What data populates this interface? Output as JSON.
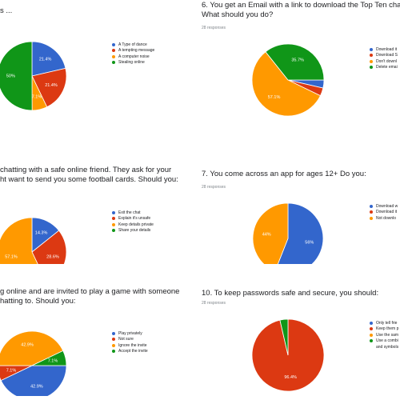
{
  "colors": {
    "blue": "#3366cc",
    "red": "#dc3912",
    "orange": "#ff9900",
    "green": "#109618"
  },
  "chart_data": [
    {
      "type": "pie",
      "title": "s ...",
      "responses": "",
      "legend": [
        "A Type of dance",
        "A tempting message",
        "A computer noise",
        "Stealing online"
      ],
      "values": [
        21.4,
        21.4,
        7.1,
        50
      ],
      "labels": [
        "21.4%",
        "21.4%",
        "7.1%",
        "50%"
      ],
      "legend_position": "right"
    },
    {
      "type": "pie",
      "title": "6. You get an Email with a link to download the Top Ten cha",
      "title2": "What should you do?",
      "responses": "28 responses",
      "legend": [
        "Download it",
        "Download S",
        "Don't downl",
        "Delete emai"
      ],
      "values": [
        3.6,
        3.6,
        57.1,
        35.7
      ],
      "labels": [
        "",
        "",
        "57.1%",
        "35.7%"
      ],
      "legend_position": "right"
    },
    {
      "type": "pie",
      "title": "chatting with a safe online friend. They ask for your",
      "title2": "ht want to send you some football cards. Should you:",
      "responses": "",
      "legend": [
        "Exit the chat",
        "Explain it's unsafe",
        "Keep details private",
        "Share your details"
      ],
      "values": [
        14.3,
        28.6,
        57.1,
        0
      ],
      "labels": [
        "14.3%",
        "28.6%",
        "57.1%",
        ""
      ],
      "legend_position": "right"
    },
    {
      "type": "pie",
      "title": "7. You come across an app for ages 12+ Do you:",
      "responses": "28 responses",
      "legend": [
        "Download w",
        "Download it",
        "Not downlo"
      ],
      "values": [
        56,
        0,
        44
      ],
      "labels": [
        "56%",
        "",
        "44%"
      ],
      "legend_position": "right"
    },
    {
      "type": "pie",
      "title": "g online and are invited to play a game with someone",
      "title2": "hatting to. Should you:",
      "responses": "",
      "legend": [
        "Play privately",
        "Not sure",
        "Ignore the invite",
        "Accept the invite"
      ],
      "values": [
        42.9,
        7.1,
        42.9,
        7.1
      ],
      "labels": [
        "42.9%",
        "7.1%",
        "42.9%",
        "7.1%"
      ],
      "legend_position": "right"
    },
    {
      "type": "pie",
      "title": "10. To keep passwords safe and secure, you should:",
      "responses": "28 responses",
      "legend": [
        "Only tell frie",
        "Keep them p",
        "Use the sam",
        "Use a combi",
        "and symbols"
      ],
      "values": [
        0,
        96.4,
        0,
        3.6
      ],
      "labels": [
        "",
        "96.4%",
        "",
        ""
      ],
      "legend_position": "right"
    }
  ]
}
